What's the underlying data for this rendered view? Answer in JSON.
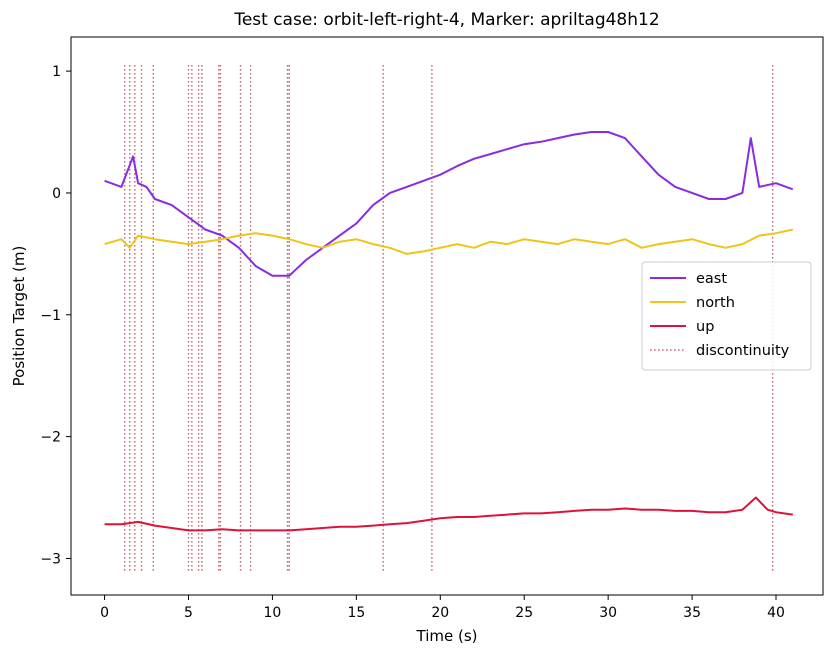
{
  "chart_data": {
    "type": "line",
    "title": "Test case: orbit-left-right-4, Marker: apriltag48h12",
    "xlabel": "Time (s)",
    "ylabel": "Position Target (m)",
    "xlim": [
      -2.0,
      42.8
    ],
    "ylim": [
      -3.3,
      1.28
    ],
    "xticks": [
      0,
      5,
      10,
      15,
      20,
      25,
      30,
      35,
      40
    ],
    "xtick_labels": [
      "0",
      "5",
      "10",
      "15",
      "20",
      "25",
      "30",
      "35",
      "40"
    ],
    "yticks": [
      1,
      0,
      -1,
      -2,
      -3
    ],
    "ytick_labels": [
      "1",
      "0",
      "−1",
      "−2",
      "−3"
    ],
    "legend_position": "center-right",
    "series": [
      {
        "name": "east",
        "color": "#8a2be2",
        "x": [
          0,
          1,
          1.7,
          2,
          2.5,
          3,
          4,
          5,
          6,
          7,
          8,
          9,
          10,
          11,
          12,
          13,
          14,
          15,
          16,
          17,
          18,
          19,
          20,
          21,
          22,
          23,
          24,
          25,
          26,
          27,
          28,
          29,
          30,
          31,
          32,
          33,
          34,
          35,
          36,
          37,
          38,
          38.5,
          39,
          40,
          41
        ],
        "values": [
          0.1,
          0.05,
          0.3,
          0.08,
          0.05,
          -0.05,
          -0.1,
          -0.2,
          -0.3,
          -0.35,
          -0.45,
          -0.6,
          -0.68,
          -0.68,
          -0.55,
          -0.45,
          -0.35,
          -0.25,
          -0.1,
          0.0,
          0.05,
          0.1,
          0.15,
          0.22,
          0.28,
          0.32,
          0.36,
          0.4,
          0.42,
          0.45,
          0.48,
          0.5,
          0.5,
          0.45,
          0.3,
          0.15,
          0.05,
          0.0,
          -0.05,
          -0.05,
          0.0,
          0.45,
          0.05,
          0.08,
          0.03
        ]
      },
      {
        "name": "north",
        "color": "#f0c419",
        "x": [
          0,
          1,
          1.5,
          2,
          3,
          4,
          5,
          6,
          7,
          8,
          9,
          10,
          11,
          12,
          13,
          14,
          15,
          16,
          17,
          18,
          19,
          20,
          21,
          22,
          23,
          24,
          25,
          26,
          27,
          28,
          29,
          30,
          31,
          32,
          33,
          34,
          35,
          36,
          37,
          38,
          39,
          40,
          41
        ],
        "values": [
          -0.42,
          -0.38,
          -0.45,
          -0.35,
          -0.38,
          -0.4,
          -0.42,
          -0.4,
          -0.38,
          -0.35,
          -0.33,
          -0.35,
          -0.38,
          -0.42,
          -0.45,
          -0.4,
          -0.38,
          -0.42,
          -0.45,
          -0.5,
          -0.48,
          -0.45,
          -0.42,
          -0.45,
          -0.4,
          -0.42,
          -0.38,
          -0.4,
          -0.42,
          -0.38,
          -0.4,
          -0.42,
          -0.38,
          -0.45,
          -0.42,
          -0.4,
          -0.38,
          -0.42,
          -0.45,
          -0.42,
          -0.35,
          -0.33,
          -0.3
        ]
      },
      {
        "name": "up",
        "color": "#dc143c",
        "x": [
          0,
          1,
          2,
          3,
          4,
          5,
          6,
          7,
          8,
          9,
          10,
          11,
          12,
          13,
          14,
          15,
          16,
          17,
          18,
          19,
          20,
          21,
          22,
          23,
          24,
          25,
          26,
          27,
          28,
          29,
          30,
          31,
          32,
          33,
          34,
          35,
          36,
          37,
          38,
          38.8,
          39.5,
          40,
          41
        ],
        "values": [
          -2.72,
          -2.72,
          -2.7,
          -2.73,
          -2.75,
          -2.77,
          -2.77,
          -2.76,
          -2.77,
          -2.77,
          -2.77,
          -2.77,
          -2.76,
          -2.75,
          -2.74,
          -2.74,
          -2.73,
          -2.72,
          -2.71,
          -2.69,
          -2.67,
          -2.66,
          -2.66,
          -2.65,
          -2.64,
          -2.63,
          -2.63,
          -2.62,
          -2.61,
          -2.6,
          -2.6,
          -2.59,
          -2.6,
          -2.6,
          -2.61,
          -2.61,
          -2.62,
          -2.62,
          -2.6,
          -2.5,
          -2.6,
          -2.62,
          -2.64
        ]
      }
    ],
    "discontinuities": {
      "name": "discontinuity",
      "color": "#c96a70",
      "x": [
        1.2,
        1.5,
        1.8,
        2.2,
        2.9,
        5.0,
        5.2,
        5.6,
        5.8,
        6.8,
        6.9,
        8.1,
        8.7,
        10.9,
        11.0,
        16.6,
        19.5,
        39.8
      ],
      "ymin": -3.1,
      "ymax": 1.05
    }
  }
}
